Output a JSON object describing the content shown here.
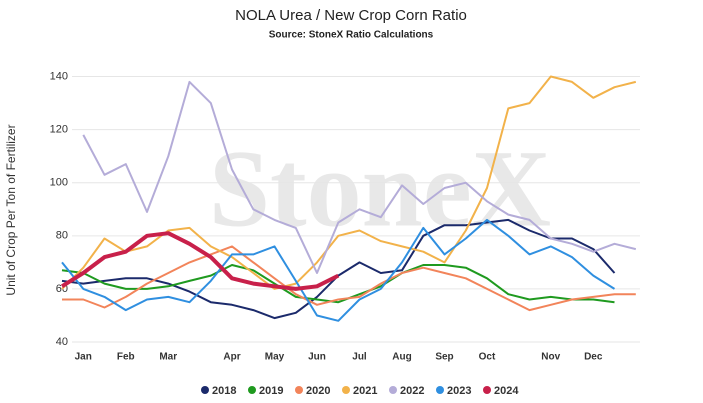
{
  "chart_data": {
    "type": "line",
    "title": "NOLA Urea / New Crop Corn Ratio",
    "subtitle": "Source: StoneX Ratio Calculations",
    "y_label": "Unit of Crop Per Ton of Fertilizer",
    "watermark": "StoneX",
    "categories": [
      null,
      "Jan",
      null,
      "Feb",
      null,
      "Mar",
      null,
      null,
      "Apr",
      null,
      "May",
      null,
      "Jun",
      null,
      "Jul",
      null,
      "Aug",
      null,
      "Sep",
      null,
      "Oct",
      null,
      null,
      "Nov",
      null,
      "Dec",
      null,
      null
    ],
    "ylim": [
      40,
      150
    ],
    "yticks": [
      40,
      60,
      80,
      100,
      120,
      140
    ],
    "grid": true,
    "legend": "bottom",
    "series": [
      {
        "name": "2018",
        "color": "#1b2a6b",
        "width": 2,
        "values": [
          63,
          62,
          63,
          64,
          64,
          62,
          59,
          55,
          54,
          52,
          49,
          51,
          57,
          65,
          70,
          66,
          67,
          80,
          84,
          84,
          85,
          86,
          82,
          79,
          79,
          75,
          66,
          null
        ]
      },
      {
        "name": "2019",
        "color": "#1f9a1f",
        "width": 2,
        "values": [
          67,
          66,
          62,
          60,
          60,
          61,
          63,
          65,
          69,
          67,
          62,
          57,
          56,
          55,
          58,
          61,
          66,
          69,
          69,
          68,
          64,
          58,
          56,
          57,
          56,
          56,
          55,
          null
        ]
      },
      {
        "name": "2020",
        "color": "#f2845a",
        "width": 2,
        "values": [
          56,
          56,
          53,
          57,
          62,
          66,
          70,
          73,
          76,
          70,
          64,
          58,
          54,
          56,
          57,
          62,
          66,
          68,
          66,
          64,
          60,
          56,
          52,
          54,
          56,
          57,
          58,
          58
        ]
      },
      {
        "name": "2021",
        "color": "#f2b24a",
        "width": 2,
        "values": [
          60,
          68,
          79,
          74,
          76,
          82,
          83,
          76,
          72,
          66,
          60,
          62,
          70,
          80,
          82,
          78,
          76,
          74,
          70,
          82,
          98,
          128,
          130,
          140,
          138,
          132,
          136,
          138
        ]
      },
      {
        "name": "2022",
        "color": "#b4acd8",
        "width": 2,
        "values": [
          null,
          118,
          103,
          107,
          89,
          110,
          138,
          130,
          105,
          90,
          86,
          83,
          66,
          85,
          90,
          87,
          99,
          92,
          98,
          100,
          93,
          88,
          86,
          79,
          77,
          74,
          77,
          75
        ]
      },
      {
        "name": "2023",
        "color": "#2f8fe0",
        "width": 2,
        "values": [
          70,
          60,
          57,
          52,
          56,
          57,
          55,
          63,
          73,
          73,
          76,
          63,
          50,
          48,
          56,
          60,
          70,
          83,
          73,
          79,
          86,
          80,
          73,
          76,
          72,
          65,
          60,
          null
        ]
      },
      {
        "name": "2024",
        "color": "#c8204a",
        "width": 4,
        "values": [
          61,
          66,
          72,
          74,
          80,
          81,
          77,
          72,
          64,
          62,
          61,
          60,
          61,
          65,
          null,
          null,
          null,
          null,
          null,
          null,
          null,
          null,
          null,
          null,
          null,
          null,
          null,
          null
        ]
      }
    ]
  }
}
